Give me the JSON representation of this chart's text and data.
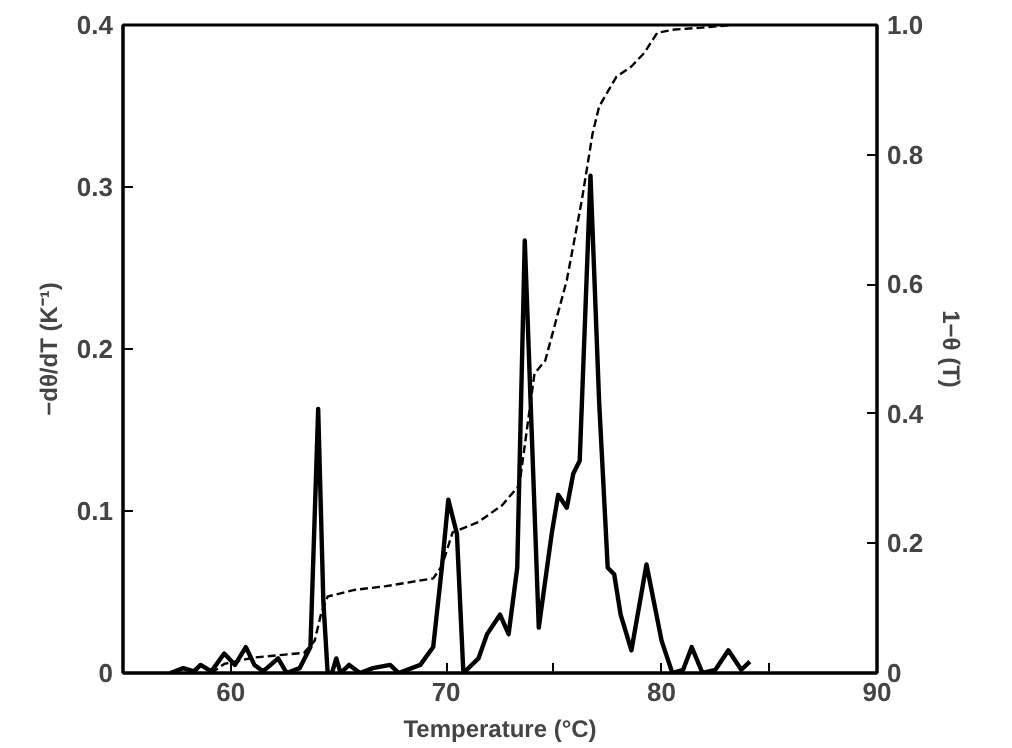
{
  "chart_data": {
    "type": "line",
    "xlabel": "Temperature (°C)",
    "ylabel": "−dθ/dT (K⁻¹)",
    "y2label": "1−θ (T)",
    "xlim": [
      55,
      90
    ],
    "ylim": [
      0,
      0.4
    ],
    "y2lim": [
      0,
      1
    ],
    "xticks": [
      60,
      {
        "value": 65,
        "label": null
      },
      70,
      {
        "value": 75,
        "label": null
      },
      80,
      {
        "value": 85,
        "label": null
      },
      90
    ],
    "yticks": [
      0,
      0.1,
      0.2,
      0.3,
      0.4
    ],
    "y2ticks": [
      0,
      0.2,
      0.4,
      0.6,
      0.8,
      {
        "value": 1,
        "label": "1.0"
      }
    ],
    "series": [
      {
        "color": "#000000",
        "line_style": "solid",
        "x": [
          57.2,
          57.8,
          58.3,
          58.6,
          59.1,
          59.7,
          60.2,
          60.7,
          61.1,
          61.5,
          62.2,
          62.6,
          63.2,
          63.7,
          64.06,
          64.3,
          64.5,
          64.7,
          64.9,
          65.1,
          65.5,
          66.0,
          66.6,
          67.4,
          67.8,
          68.8,
          69.4,
          69.8,
          70.1,
          70.5,
          70.8,
          71.5,
          71.9,
          72.5,
          72.9,
          73.3,
          73.65,
          74.3,
          74.9,
          75.2,
          75.6,
          75.9,
          76.2,
          76.7,
          77.1,
          77.5,
          77.8,
          78.1,
          78.6,
          79.3,
          80.0,
          80.5,
          81.0,
          81.4,
          81.9,
          82.5,
          83.1,
          83.7,
          84.1
        ],
        "values": [
          0,
          0.003,
          0.001,
          0.005,
          0.001,
          0.012,
          0.005,
          0.016,
          0.005,
          0.001,
          0.009,
          0,
          0.003,
          0.016,
          0.163,
          0.044,
          0,
          0,
          0.009,
          0,
          0.005,
          0,
          0.003,
          0.005,
          0,
          0.005,
          0.016,
          0.065,
          0.107,
          0.086,
          0,
          0.009,
          0.024,
          0.036,
          0.024,
          0.065,
          0.267,
          0.028,
          0.086,
          0.11,
          0.102,
          0.123,
          0.131,
          0.307,
          0.168,
          0.065,
          0.061,
          0.036,
          0.014,
          0.067,
          0.02,
          0,
          0.002,
          0.016,
          0,
          0.002,
          0.014,
          0.002,
          0.007
        ]
      },
      {
        "color": "#000000",
        "line_style": "dashed",
        "axis": "y2",
        "x": [
          59.1,
          59.7,
          61.1,
          63.4,
          63.9,
          64.2,
          64.5,
          65.7,
          67.2,
          69.4,
          69.8,
          70.3,
          71.5,
          72.6,
          73.4,
          74.1,
          74.6,
          75.6,
          76.3,
          76.8,
          77.1,
          77.9,
          78.6,
          79.2,
          79.8,
          80.6,
          81.9,
          83.2
        ],
        "values": [
          0,
          0.014,
          0.024,
          0.031,
          0.05,
          0.092,
          0.118,
          0.128,
          0.134,
          0.146,
          0.165,
          0.217,
          0.233,
          0.259,
          0.29,
          0.462,
          0.482,
          0.606,
          0.73,
          0.833,
          0.874,
          0.92,
          0.936,
          0.957,
          0.988,
          0.993,
          0.996,
          1.0
        ]
      }
    ]
  }
}
